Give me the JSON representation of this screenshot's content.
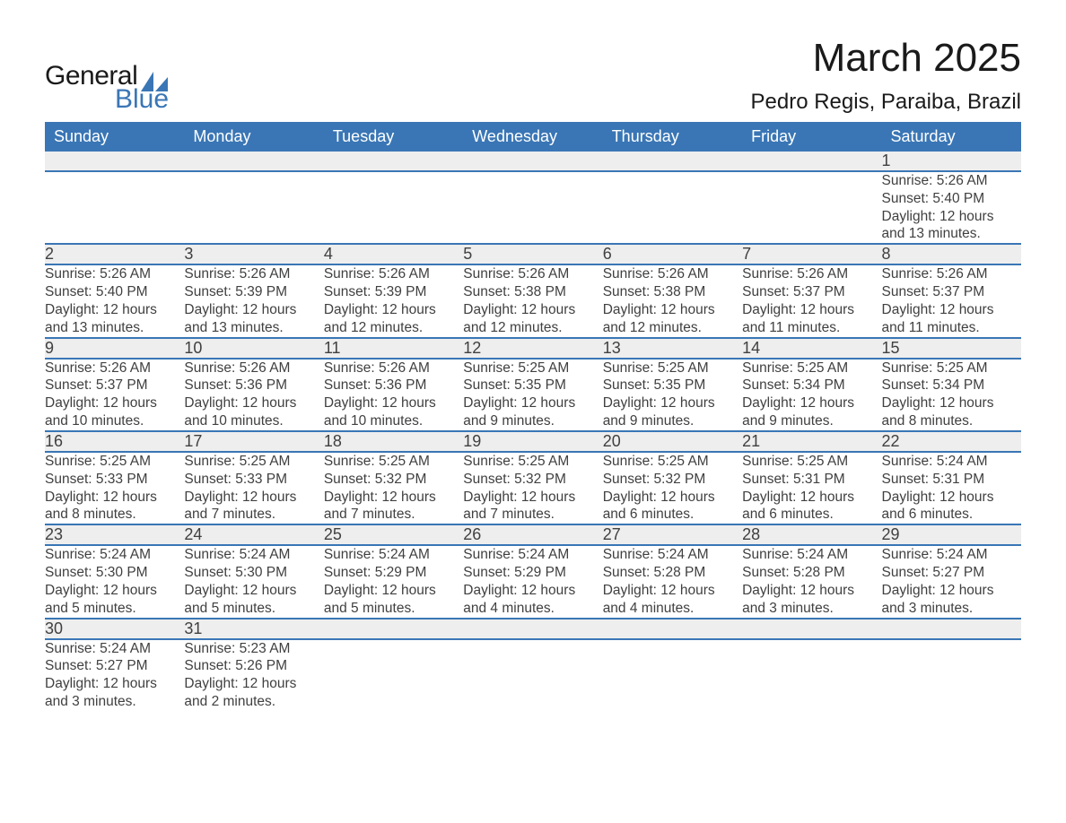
{
  "logo": {
    "text_main": "General",
    "text_sub": "Blue",
    "icon_color": "#3a76b5"
  },
  "header": {
    "month_year": "March 2025",
    "location": "Pedro Regis, Paraiba, Brazil"
  },
  "colors": {
    "header_bg": "#3a76b5",
    "header_text": "#ffffff",
    "daynum_bg": "#eeeeee",
    "text": "#404040",
    "row_divider": "#3a76b5",
    "page_bg": "#ffffff"
  },
  "typography": {
    "month_title_fontsize": 44,
    "location_fontsize": 24,
    "weekday_fontsize": 18,
    "daynum_fontsize": 18,
    "detail_fontsize": 15.5
  },
  "calendar": {
    "weekdays": [
      "Sunday",
      "Monday",
      "Tuesday",
      "Wednesday",
      "Thursday",
      "Friday",
      "Saturday"
    ],
    "weeks": [
      [
        null,
        null,
        null,
        null,
        null,
        null,
        {
          "day": "1",
          "sunrise": "Sunrise: 5:26 AM",
          "sunset": "Sunset: 5:40 PM",
          "daylight1": "Daylight: 12 hours",
          "daylight2": "and 13 minutes."
        }
      ],
      [
        {
          "day": "2",
          "sunrise": "Sunrise: 5:26 AM",
          "sunset": "Sunset: 5:40 PM",
          "daylight1": "Daylight: 12 hours",
          "daylight2": "and 13 minutes."
        },
        {
          "day": "3",
          "sunrise": "Sunrise: 5:26 AM",
          "sunset": "Sunset: 5:39 PM",
          "daylight1": "Daylight: 12 hours",
          "daylight2": "and 13 minutes."
        },
        {
          "day": "4",
          "sunrise": "Sunrise: 5:26 AM",
          "sunset": "Sunset: 5:39 PM",
          "daylight1": "Daylight: 12 hours",
          "daylight2": "and 12 minutes."
        },
        {
          "day": "5",
          "sunrise": "Sunrise: 5:26 AM",
          "sunset": "Sunset: 5:38 PM",
          "daylight1": "Daylight: 12 hours",
          "daylight2": "and 12 minutes."
        },
        {
          "day": "6",
          "sunrise": "Sunrise: 5:26 AM",
          "sunset": "Sunset: 5:38 PM",
          "daylight1": "Daylight: 12 hours",
          "daylight2": "and 12 minutes."
        },
        {
          "day": "7",
          "sunrise": "Sunrise: 5:26 AM",
          "sunset": "Sunset: 5:37 PM",
          "daylight1": "Daylight: 12 hours",
          "daylight2": "and 11 minutes."
        },
        {
          "day": "8",
          "sunrise": "Sunrise: 5:26 AM",
          "sunset": "Sunset: 5:37 PM",
          "daylight1": "Daylight: 12 hours",
          "daylight2": "and 11 minutes."
        }
      ],
      [
        {
          "day": "9",
          "sunrise": "Sunrise: 5:26 AM",
          "sunset": "Sunset: 5:37 PM",
          "daylight1": "Daylight: 12 hours",
          "daylight2": "and 10 minutes."
        },
        {
          "day": "10",
          "sunrise": "Sunrise: 5:26 AM",
          "sunset": "Sunset: 5:36 PM",
          "daylight1": "Daylight: 12 hours",
          "daylight2": "and 10 minutes."
        },
        {
          "day": "11",
          "sunrise": "Sunrise: 5:26 AM",
          "sunset": "Sunset: 5:36 PM",
          "daylight1": "Daylight: 12 hours",
          "daylight2": "and 10 minutes."
        },
        {
          "day": "12",
          "sunrise": "Sunrise: 5:25 AM",
          "sunset": "Sunset: 5:35 PM",
          "daylight1": "Daylight: 12 hours",
          "daylight2": "and 9 minutes."
        },
        {
          "day": "13",
          "sunrise": "Sunrise: 5:25 AM",
          "sunset": "Sunset: 5:35 PM",
          "daylight1": "Daylight: 12 hours",
          "daylight2": "and 9 minutes."
        },
        {
          "day": "14",
          "sunrise": "Sunrise: 5:25 AM",
          "sunset": "Sunset: 5:34 PM",
          "daylight1": "Daylight: 12 hours",
          "daylight2": "and 9 minutes."
        },
        {
          "day": "15",
          "sunrise": "Sunrise: 5:25 AM",
          "sunset": "Sunset: 5:34 PM",
          "daylight1": "Daylight: 12 hours",
          "daylight2": "and 8 minutes."
        }
      ],
      [
        {
          "day": "16",
          "sunrise": "Sunrise: 5:25 AM",
          "sunset": "Sunset: 5:33 PM",
          "daylight1": "Daylight: 12 hours",
          "daylight2": "and 8 minutes."
        },
        {
          "day": "17",
          "sunrise": "Sunrise: 5:25 AM",
          "sunset": "Sunset: 5:33 PM",
          "daylight1": "Daylight: 12 hours",
          "daylight2": "and 7 minutes."
        },
        {
          "day": "18",
          "sunrise": "Sunrise: 5:25 AM",
          "sunset": "Sunset: 5:32 PM",
          "daylight1": "Daylight: 12 hours",
          "daylight2": "and 7 minutes."
        },
        {
          "day": "19",
          "sunrise": "Sunrise: 5:25 AM",
          "sunset": "Sunset: 5:32 PM",
          "daylight1": "Daylight: 12 hours",
          "daylight2": "and 7 minutes."
        },
        {
          "day": "20",
          "sunrise": "Sunrise: 5:25 AM",
          "sunset": "Sunset: 5:32 PM",
          "daylight1": "Daylight: 12 hours",
          "daylight2": "and 6 minutes."
        },
        {
          "day": "21",
          "sunrise": "Sunrise: 5:25 AM",
          "sunset": "Sunset: 5:31 PM",
          "daylight1": "Daylight: 12 hours",
          "daylight2": "and 6 minutes."
        },
        {
          "day": "22",
          "sunrise": "Sunrise: 5:24 AM",
          "sunset": "Sunset: 5:31 PM",
          "daylight1": "Daylight: 12 hours",
          "daylight2": "and 6 minutes."
        }
      ],
      [
        {
          "day": "23",
          "sunrise": "Sunrise: 5:24 AM",
          "sunset": "Sunset: 5:30 PM",
          "daylight1": "Daylight: 12 hours",
          "daylight2": "and 5 minutes."
        },
        {
          "day": "24",
          "sunrise": "Sunrise: 5:24 AM",
          "sunset": "Sunset: 5:30 PM",
          "daylight1": "Daylight: 12 hours",
          "daylight2": "and 5 minutes."
        },
        {
          "day": "25",
          "sunrise": "Sunrise: 5:24 AM",
          "sunset": "Sunset: 5:29 PM",
          "daylight1": "Daylight: 12 hours",
          "daylight2": "and 5 minutes."
        },
        {
          "day": "26",
          "sunrise": "Sunrise: 5:24 AM",
          "sunset": "Sunset: 5:29 PM",
          "daylight1": "Daylight: 12 hours",
          "daylight2": "and 4 minutes."
        },
        {
          "day": "27",
          "sunrise": "Sunrise: 5:24 AM",
          "sunset": "Sunset: 5:28 PM",
          "daylight1": "Daylight: 12 hours",
          "daylight2": "and 4 minutes."
        },
        {
          "day": "28",
          "sunrise": "Sunrise: 5:24 AM",
          "sunset": "Sunset: 5:28 PM",
          "daylight1": "Daylight: 12 hours",
          "daylight2": "and 3 minutes."
        },
        {
          "day": "29",
          "sunrise": "Sunrise: 5:24 AM",
          "sunset": "Sunset: 5:27 PM",
          "daylight1": "Daylight: 12 hours",
          "daylight2": "and 3 minutes."
        }
      ],
      [
        {
          "day": "30",
          "sunrise": "Sunrise: 5:24 AM",
          "sunset": "Sunset: 5:27 PM",
          "daylight1": "Daylight: 12 hours",
          "daylight2": "and 3 minutes."
        },
        {
          "day": "31",
          "sunrise": "Sunrise: 5:23 AM",
          "sunset": "Sunset: 5:26 PM",
          "daylight1": "Daylight: 12 hours",
          "daylight2": "and 2 minutes."
        },
        null,
        null,
        null,
        null,
        null
      ]
    ]
  }
}
